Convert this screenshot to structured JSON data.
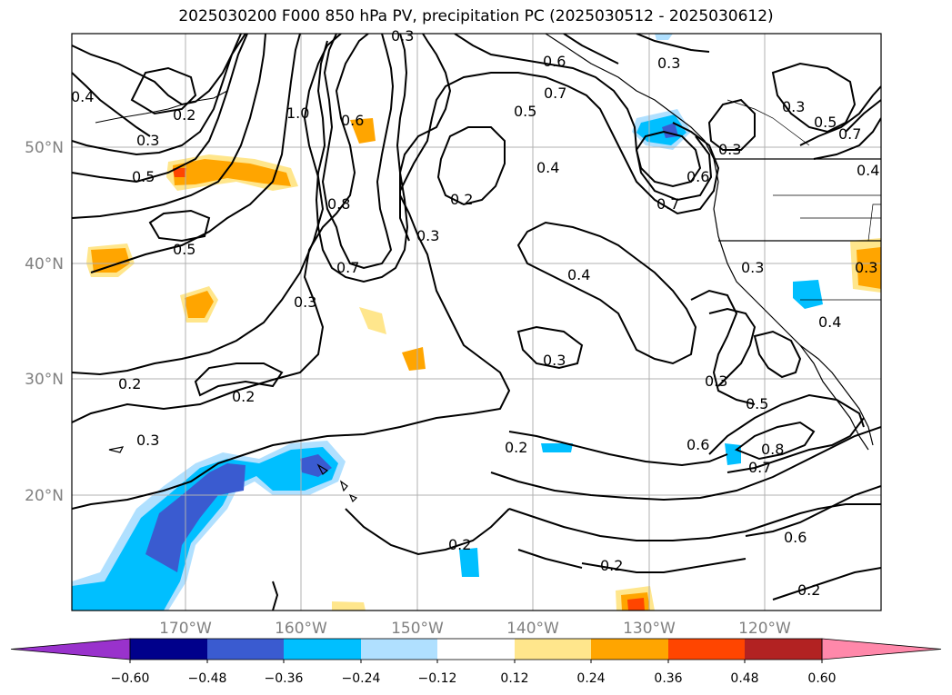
{
  "title": "2025030200 F000 850 hPa PV, precipitation PC (2025030512 - 2025030612)",
  "map": {
    "lat_labels": [
      "50°N",
      "40°N",
      "30°N",
      "20°N"
    ],
    "lon_labels": [
      "170°W",
      "160°W",
      "150°W",
      "140°W",
      "130°W",
      "120°W"
    ],
    "contour_labels": [
      "0.4",
      "0.2",
      "0.3",
      "0.5",
      "1.0",
      "0.6",
      "0.8",
      "0.7",
      "0.5",
      "0.2",
      "0.3",
      "0.4",
      "0.6",
      "0.7",
      "0.5",
      "0.4",
      "0.2",
      "0.3",
      "0.4",
      "0.3",
      "0.3",
      "0.7",
      "0.6",
      "0.3",
      "0.3",
      "0.5",
      "0.7",
      "0.4",
      "0.3",
      "0.3",
      "0.2",
      "0.2",
      "0.3",
      "0.5",
      "0.6",
      "0.8",
      "0.7",
      "0.2",
      "0.2",
      "0.6",
      "0.2",
      "0.3",
      "0.3"
    ],
    "colors": {
      "ocean": "#ffffff",
      "grid": "#b0b0b0",
      "contour": "#000000"
    }
  },
  "colorbar": {
    "ticks": [
      "−0.60",
      "−0.48",
      "−0.36",
      "−0.24",
      "−0.12",
      "0.12",
      "0.24",
      "0.36",
      "0.48",
      "0.60"
    ],
    "colors": [
      "#9932cc",
      "#00008b",
      "#3a5bd0",
      "#00bfff",
      "#b0e0ff",
      "#ffffff",
      "#ffe68c",
      "#ffa500",
      "#ff4500",
      "#b22222",
      "#ff88aa"
    ]
  }
}
